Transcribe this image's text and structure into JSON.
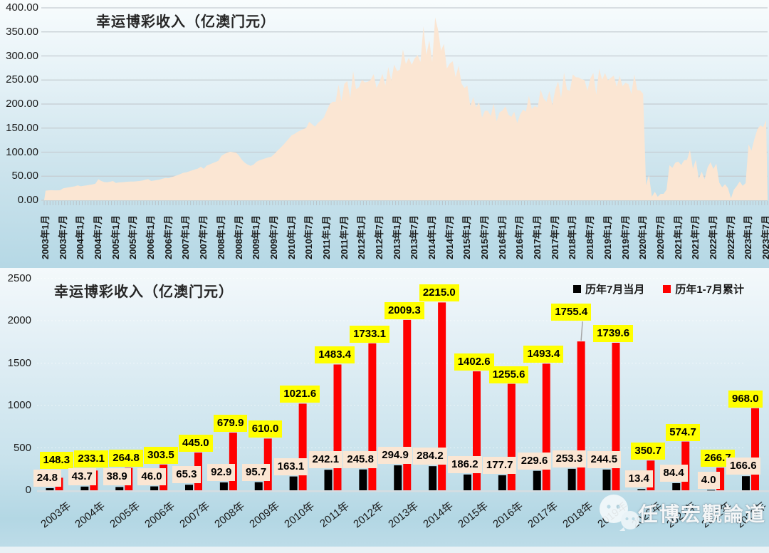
{
  "colors": {
    "area_fill": "#fbe6d3",
    "gridline_top": "#c5ccd1",
    "tick_comb": "#b9c3c9",
    "bar_july": "#000000",
    "bar_cumulative": "#ff0000",
    "label_bg_july": "#fbe6d3",
    "label_bg_cumulative": "#ffff00",
    "baseline": "#d5dde1",
    "leader_line": "#a6a6a6"
  },
  "watermark": {
    "text": "任博宏觀論道",
    "icon": "wechat-icon"
  },
  "chart_data": [
    {
      "type": "area",
      "title": "幸运博彩收入（亿澳门元）",
      "xlabel": "",
      "ylabel": "",
      "ylim": [
        0,
        400
      ],
      "grid": true,
      "y_ticks": [
        "400.00",
        "350.00",
        "300.00",
        "250.00",
        "200.00",
        "150.00",
        "100.00",
        "50.00",
        "0.00"
      ],
      "x_tick_labels": [
        "2003年1月",
        "2003年7月",
        "2004年1月",
        "2004年7月",
        "2005年1月",
        "2005年7月",
        "2006年1月",
        "2006年7月",
        "2007年1月",
        "2007年7月",
        "2008年1月",
        "2008年7月",
        "2009年1月",
        "2009年7月",
        "2010年1月",
        "2010年7月",
        "2011年1月",
        "2011年7月",
        "2012年1月",
        "2012年7月",
        "2013年1月",
        "2013年7月",
        "2014年1月",
        "2014年7月",
        "2015年1月",
        "2015年7月",
        "2016年1月",
        "2016年7月",
        "2017年1月",
        "2017年7月",
        "2018年1月",
        "2018年7月",
        "2019年1月",
        "2019年7月",
        "2020年1月",
        "2020年7月",
        "2021年1月",
        "2021年7月",
        "2022年1月",
        "2022年7月",
        "2023年1月",
        "2023年7月"
      ],
      "x_tick_step_months": 6,
      "series": [
        {
          "name": "幸运博彩收入(月度)",
          "start": "2003年1月",
          "end": "2023年7月",
          "values": [
            20.0,
            20.5,
            21.0,
            20.5,
            20.5,
            21.0,
            24.8,
            26.0,
            27.0,
            28.0,
            29.0,
            31.0,
            29.0,
            30.0,
            31.0,
            32.0,
            33.0,
            34.4,
            43.7,
            40.0,
            38.0,
            37.5,
            38.5,
            40.0,
            36.0,
            37.0,
            37.5,
            38.0,
            38.5,
            38.9,
            38.9,
            39.5,
            40.0,
            41.0,
            42.5,
            44.0,
            40.0,
            41.0,
            42.0,
            43.0,
            45.0,
            46.5,
            46.0,
            48.0,
            50.0,
            52.0,
            54.5,
            57.0,
            58.0,
            60.0,
            62.0,
            64.0,
            66.0,
            69.7,
            65.3,
            72.0,
            74.5,
            77.0,
            79.5,
            82.0,
            92.0,
            96.0,
            99.0,
            101.0,
            100.0,
            99.0,
            92.9,
            84.0,
            78.0,
            74.0,
            71.5,
            74.0,
            80.0,
            83.0,
            85.0,
            87.0,
            89.0,
            90.3,
            95.7,
            102.0,
            108.0,
            114.0,
            121.0,
            128.0,
            135.0,
            138.0,
            142.0,
            145.0,
            148.0,
            150.5,
            163.1,
            158.0,
            153.0,
            161.0,
            166.0,
            172.0,
            186.3,
            199.6,
            204.9,
            204.6,
            240.3,
            205.6,
            242.1,
            247.7,
            212.4,
            268.5,
            230.7,
            235.1,
            250.4,
            244.9,
            246.3,
            250.3,
            262.1,
            233.3,
            245.8,
            263.0,
            238.7,
            277.0,
            248.8,
            281.8,
            268.6,
            271.6,
            313.4,
            283.1,
            296.1,
            281.6,
            294.9,
            301.8,
            287.4,
            361.6,
            301.9,
            332.5,
            287.0,
            380.0,
            354.0,
            311.0,
            325.0,
            273.8,
            284.2,
            288.9,
            255.6,
            280.0,
            242.7,
            233.3,
            238.3,
            195.4,
            214.5,
            192.8,
            203.5,
            171.9,
            186.2,
            185.9,
            175.4,
            200.6,
            164.3,
            182.7,
            186.7,
            195.2,
            178.2,
            173.4,
            183.9,
            160.5,
            177.7,
            188.4,
            184.0,
            217.1,
            189.2,
            196.1,
            192.5,
            229.9,
            212.1,
            204.4,
            227.1,
            197.8,
            229.6,
            246.8,
            212.7,
            265.6,
            230.0,
            227.8,
            261.5,
            255.8,
            255.2,
            251.7,
            250.0,
            227.9,
            253.3,
            264.9,
            219.5,
            273.2,
            250.3,
            264.5,
            249.4,
            254.7,
            259.0,
            235.9,
            258.8,
            237.3,
            244.5,
            241.3,
            221.0,
            261.6,
            229.0,
            228.4,
            221.3,
            31.0,
            52.6,
            7.5,
            17.6,
            7.3,
            13.4,
            13.3,
            22.1,
            72.7,
            67.5,
            78.2,
            80.3,
            73.1,
            83.1,
            84.0,
            104.5,
            65.3,
            84.4,
            44.4,
            59.4,
            43.7,
            68.0,
            78.8,
            65.0,
            76.0,
            36.7,
            26.8,
            33.4,
            24.8,
            4.0,
            22.0,
            29.6,
            39.0,
            30.0,
            35.5,
            116.1,
            103.2,
            127.2,
            147.2,
            155.7,
            152.0,
            166.6
          ]
        }
      ]
    },
    {
      "type": "bar",
      "title": "幸运博彩收入（亿澳门元）",
      "xlabel": "",
      "ylabel": "",
      "ylim": [
        0,
        2500
      ],
      "grid": false,
      "legend_position": "top-right",
      "y_ticks": [
        "2500",
        "2000",
        "1500",
        "1000",
        "500",
        "0"
      ],
      "categories": [
        "2003年",
        "2004年",
        "2005年",
        "2006年",
        "2007年",
        "2008年",
        "2009年",
        "2010年",
        "2011年",
        "2012年",
        "2013年",
        "2014年",
        "2015年",
        "2016年",
        "2017年",
        "2018年",
        "2019年",
        "2020年",
        "2021年",
        "2022年",
        "2023年"
      ],
      "series": [
        {
          "name": "历年7月当月",
          "values": [
            24.8,
            43.7,
            38.9,
            46.0,
            65.3,
            92.9,
            95.7,
            163.1,
            242.1,
            245.8,
            294.9,
            284.2,
            186.2,
            177.7,
            229.6,
            253.3,
            244.5,
            13.4,
            84.4,
            4.0,
            166.6
          ]
        },
        {
          "name": "历年1-7月累计",
          "values": [
            148.3,
            233.1,
            264.8,
            303.5,
            445.0,
            679.9,
            610.0,
            1021.6,
            1483.4,
            1733.1,
            2009.3,
            2215.0,
            1402.6,
            1255.6,
            1493.4,
            1755.4,
            1739.6,
            350.7,
            574.7,
            266.7,
            968.0
          ]
        }
      ]
    }
  ]
}
